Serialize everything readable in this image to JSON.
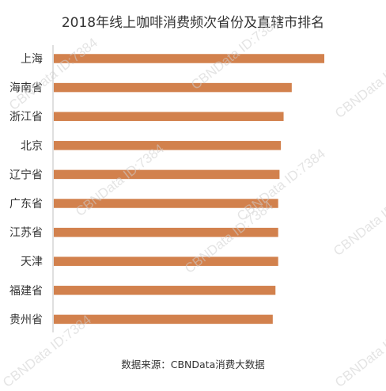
{
  "chart_data": {
    "type": "bar",
    "orientation": "horizontal",
    "title": "2018年线上咖啡消费频次省份及直辖市排名",
    "categories": [
      "上海",
      "海南省",
      "浙江省",
      "北京",
      "辽宁省",
      "广东省",
      "江苏省",
      "天津",
      "福建省",
      "贵州省"
    ],
    "values": [
      100,
      88,
      85,
      84,
      83.5,
      83,
      83,
      83,
      82,
      81
    ],
    "xlim": [
      0,
      100
    ],
    "grid": false,
    "legend": "none",
    "bar_color": "#d2814d",
    "axis_color": "#bfbfbf"
  },
  "source_text": "数据来源：CBNData消费大数据",
  "watermark_text": "CBNData ID:7384"
}
